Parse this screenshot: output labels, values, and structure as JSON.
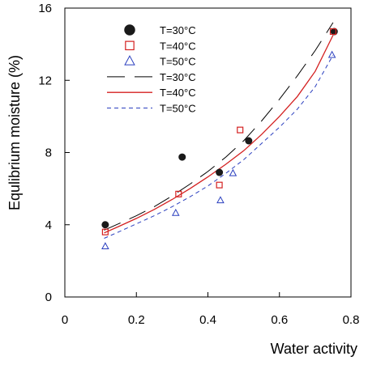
{
  "chart_data": {
    "type": "scatter",
    "xlabel": "Water activity",
    "ylabel": "Equlibrium moisture (%)",
    "xlim": [
      0,
      0.8
    ],
    "ylim": [
      0,
      16
    ],
    "xticks": [
      0,
      0.2,
      0.4,
      0.6,
      0.8
    ],
    "yticks": [
      0,
      4,
      8,
      12,
      16
    ],
    "xtick_labels": [
      "0",
      "0.2",
      "0.4",
      "0.6",
      "0.8"
    ],
    "ytick_labels": [
      "0",
      "4",
      "8",
      "12",
      "16"
    ],
    "grid": false,
    "legend_position": "top-left",
    "series": [
      {
        "name": "T=30°C",
        "kind": "points",
        "marker": "filled-circle",
        "color": "#1a1a1a",
        "points": [
          [
            0.113,
            4.0
          ],
          [
            0.328,
            7.75
          ],
          [
            0.432,
            6.9
          ],
          [
            0.514,
            8.65
          ],
          [
            0.753,
            14.7
          ]
        ]
      },
      {
        "name": "T=40°C",
        "kind": "points",
        "marker": "open-square",
        "color": "#d42020",
        "points": [
          [
            0.113,
            3.6
          ],
          [
            0.318,
            5.7
          ],
          [
            0.432,
            6.2
          ],
          [
            0.49,
            9.25
          ],
          [
            0.75,
            14.7
          ]
        ]
      },
      {
        "name": "T=50°C",
        "kind": "points",
        "marker": "open-triangle",
        "color": "#2a3fbf",
        "points": [
          [
            0.113,
            2.8
          ],
          [
            0.31,
            4.65
          ],
          [
            0.435,
            5.35
          ],
          [
            0.47,
            6.85
          ],
          [
            0.747,
            13.4
          ]
        ]
      },
      {
        "name": "T=30°C",
        "kind": "line",
        "dash": "long-dash",
        "color": "#000000",
        "points": [
          [
            0.11,
            3.7
          ],
          [
            0.15,
            4.05
          ],
          [
            0.2,
            4.5
          ],
          [
            0.25,
            5.0
          ],
          [
            0.3,
            5.6
          ],
          [
            0.35,
            6.25
          ],
          [
            0.4,
            6.95
          ],
          [
            0.45,
            7.75
          ],
          [
            0.5,
            8.65
          ],
          [
            0.55,
            9.75
          ],
          [
            0.6,
            10.95
          ],
          [
            0.65,
            12.25
          ],
          [
            0.7,
            13.65
          ],
          [
            0.75,
            15.2
          ]
        ]
      },
      {
        "name": "T=40°C",
        "kind": "line",
        "dash": "solid",
        "color": "#d42020",
        "points": [
          [
            0.11,
            3.55
          ],
          [
            0.15,
            3.9
          ],
          [
            0.2,
            4.35
          ],
          [
            0.25,
            4.85
          ],
          [
            0.3,
            5.4
          ],
          [
            0.35,
            6.0
          ],
          [
            0.4,
            6.65
          ],
          [
            0.45,
            7.35
          ],
          [
            0.5,
            8.1
          ],
          [
            0.55,
            9.0
          ],
          [
            0.6,
            10.0
          ],
          [
            0.65,
            11.1
          ],
          [
            0.7,
            12.5
          ],
          [
            0.75,
            14.5
          ]
        ]
      },
      {
        "name": "T=50°C",
        "kind": "line",
        "dash": "short-dash",
        "color": "#2a3fbf",
        "points": [
          [
            0.11,
            3.25
          ],
          [
            0.15,
            3.6
          ],
          [
            0.2,
            4.05
          ],
          [
            0.25,
            4.5
          ],
          [
            0.3,
            5.0
          ],
          [
            0.35,
            5.55
          ],
          [
            0.4,
            6.15
          ],
          [
            0.45,
            6.85
          ],
          [
            0.5,
            7.6
          ],
          [
            0.55,
            8.5
          ],
          [
            0.6,
            9.4
          ],
          [
            0.65,
            10.4
          ],
          [
            0.7,
            11.65
          ],
          [
            0.75,
            13.4
          ]
        ]
      }
    ]
  }
}
